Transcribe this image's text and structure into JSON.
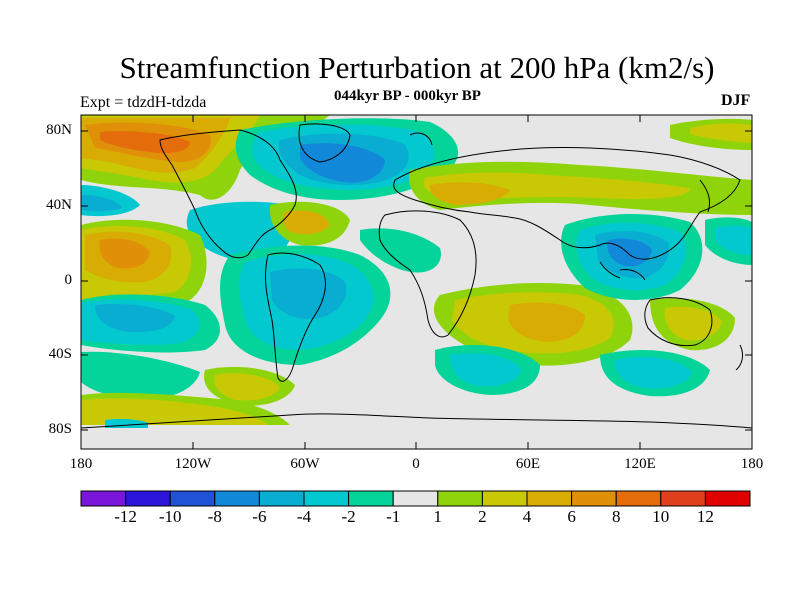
{
  "title": "Streamfunction Perturbation at 200 hPa (km2/s)",
  "subtitle": "044kyr BP - 000kyr BP",
  "left_note": "Expt = tdzdH-tdzda",
  "right_note": "DJF",
  "lat_labels": [
    "80N",
    "40N",
    "0",
    "40S",
    "80S"
  ],
  "lon_labels": [
    "180",
    "120W",
    "60W",
    "0",
    "60E",
    "120E",
    "180"
  ],
  "colorbar": {
    "colors": [
      "#7a16d9",
      "#2b16d9",
      "#1f52d6",
      "#1288d9",
      "#0aadd2",
      "#04c8cf",
      "#04d49a",
      "#e6e6e6",
      "#8fd40a",
      "#c8c804",
      "#d9ac04",
      "#e09008",
      "#e56c0a",
      "#e0401c",
      "#e00000"
    ],
    "labels": [
      "-12",
      "-10",
      "-8",
      "-6",
      "-4",
      "-2",
      "-1",
      "1",
      "2",
      "4",
      "6",
      "8",
      "10",
      "12"
    ]
  },
  "map_colors": {
    "background": "#e6e6e6",
    "coast": "#000000",
    "frame": "#000000"
  }
}
